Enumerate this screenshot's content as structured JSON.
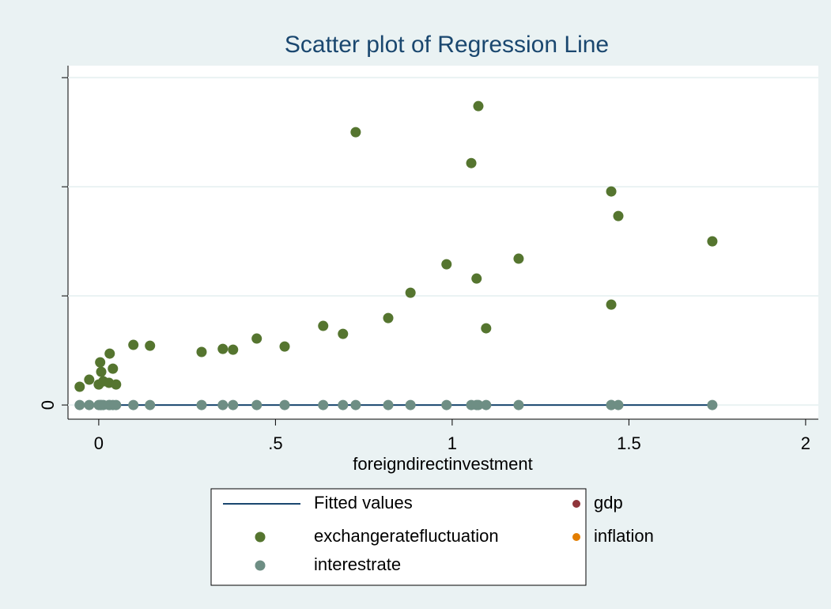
{
  "chart_data": {
    "type": "scatter",
    "title": "Scatter plot of Regression Line",
    "x_label": "foreigndirectinvestment",
    "xlim": [
      -0.087,
      2.036
    ],
    "xticks": [
      0,
      {
        "value": 0.5,
        "label": ".5"
      },
      1,
      1.5,
      2
    ],
    "ylim": [
      -0.13,
      3.11
    ],
    "yticks": [
      0,
      1,
      2,
      3
    ],
    "y_labeled_ticks": [
      0
    ],
    "grid": true,
    "series": [
      {
        "name": "Fitted values",
        "type": "line",
        "color": "#1a476f",
        "x": [
          -0.054,
          1.736
        ],
        "values": [
          0,
          0
        ]
      },
      {
        "name": "gdp",
        "type": "scatter",
        "color": "#90353b",
        "x": [],
        "values": []
      },
      {
        "name": "exchangeratefluctuation",
        "type": "scatter",
        "color": "#55752f",
        "x": [
          -0.054,
          -0.027,
          0,
          0.007,
          0.013,
          0.029,
          0.04,
          0.049,
          0.031,
          0.004,
          0.098,
          0.145,
          0.291,
          0.351,
          0.38,
          0.447,
          0.526,
          0.635,
          0.691,
          0.727,
          0.819,
          0.882,
          0.984,
          1.054,
          1.069,
          1.074,
          1.096,
          1.188,
          1.45,
          1.45,
          1.47,
          1.736
        ],
        "values": [
          0.167,
          0.232,
          0.188,
          0.304,
          0.217,
          0.203,
          0.333,
          0.188,
          0.471,
          0.391,
          0.551,
          0.543,
          0.486,
          0.514,
          0.507,
          0.609,
          0.536,
          0.725,
          0.652,
          2.5,
          0.797,
          1.029,
          1.29,
          2.217,
          1.159,
          2.739,
          0.703,
          1.341,
          1.957,
          0.92,
          1.732,
          1.5
        ]
      },
      {
        "name": "inflation",
        "type": "scatter",
        "color": "#e37e00",
        "x": [],
        "values": []
      },
      {
        "name": "interestrate",
        "type": "scatter",
        "color": "#6e8e84",
        "x": [
          -0.054,
          -0.027,
          0,
          0.007,
          0.013,
          0.029,
          0.04,
          0.049,
          0.031,
          0.004,
          0.098,
          0.145,
          0.291,
          0.351,
          0.38,
          0.447,
          0.526,
          0.635,
          0.691,
          0.727,
          0.819,
          0.882,
          0.984,
          1.054,
          1.069,
          1.074,
          1.096,
          1.188,
          1.45,
          1.45,
          1.47,
          1.736
        ],
        "values": [
          0,
          0,
          0,
          0,
          0,
          0,
          0,
          0,
          0,
          0,
          0,
          0,
          0,
          0,
          0,
          0,
          0,
          0,
          0,
          0,
          0,
          0,
          0,
          0,
          0,
          0,
          0,
          0,
          0,
          0,
          0,
          0
        ]
      }
    ]
  }
}
